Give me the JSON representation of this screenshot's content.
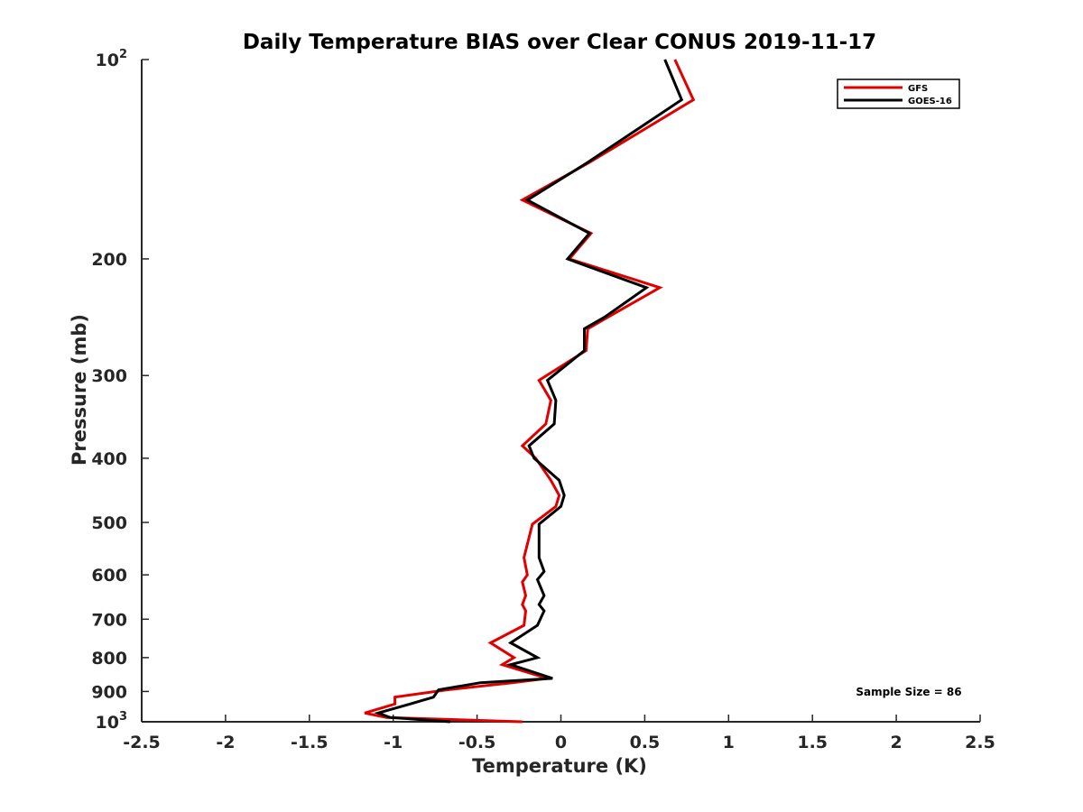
{
  "chart_data": {
    "type": "line",
    "title": "Daily Temperature BIAS over Clear CONUS 2019-11-17",
    "xlabel": "Temperature (K)",
    "ylabel": "Pressure (mb)",
    "xlim": [
      -2.5,
      2.5
    ],
    "ylim": [
      100,
      1000
    ],
    "y_scale": "log",
    "y_reversed": true,
    "grid": false,
    "legend_position": "top-right",
    "x_ticks": [
      -2.5,
      -2,
      -1.5,
      -1,
      -0.5,
      0,
      0.5,
      1,
      1.5,
      2,
      2.5
    ],
    "x_tick_labels": [
      "-2.5",
      "-2",
      "-1.5",
      "-1",
      "-0.5",
      "0",
      "0.5",
      "1",
      "1.5",
      "2",
      "2.5"
    ],
    "y_ticks": [
      100,
      200,
      300,
      400,
      500,
      600,
      700,
      800,
      900,
      1000
    ],
    "y_tick_labels": [
      {
        "base": "10",
        "exp": "2"
      },
      {
        "base": "200",
        "exp": ""
      },
      {
        "base": "300",
        "exp": ""
      },
      {
        "base": "400",
        "exp": ""
      },
      {
        "base": "500",
        "exp": ""
      },
      {
        "base": "600",
        "exp": ""
      },
      {
        "base": "700",
        "exp": ""
      },
      {
        "base": "800",
        "exp": ""
      },
      {
        "base": "900",
        "exp": ""
      },
      {
        "base": "10",
        "exp": "3"
      }
    ],
    "annotation": "Sample Size = 86",
    "series": [
      {
        "name": "GFS",
        "color": "#e00000",
        "points": [
          [
            0.68,
            100
          ],
          [
            0.79,
            115
          ],
          [
            0.17,
            143
          ],
          [
            -0.23,
            163
          ],
          [
            0.18,
            183
          ],
          [
            0.05,
            200
          ],
          [
            0.59,
            221
          ],
          [
            0.28,
            245
          ],
          [
            0.16,
            255
          ],
          [
            0.15,
            275
          ],
          [
            -0.13,
            305
          ],
          [
            -0.06,
            327
          ],
          [
            -0.09,
            355
          ],
          [
            -0.23,
            383
          ],
          [
            -0.15,
            400
          ],
          [
            -0.06,
            432
          ],
          [
            -0.01,
            455
          ],
          [
            -0.03,
            473
          ],
          [
            -0.17,
            503
          ],
          [
            -0.22,
            565
          ],
          [
            -0.2,
            600
          ],
          [
            -0.23,
            615
          ],
          [
            -0.21,
            645
          ],
          [
            -0.23,
            665
          ],
          [
            -0.21,
            680
          ],
          [
            -0.22,
            715
          ],
          [
            -0.42,
            760
          ],
          [
            -0.28,
            800
          ],
          [
            -0.35,
            820
          ],
          [
            -0.08,
            860
          ],
          [
            -0.29,
            873
          ],
          [
            -0.68,
            895
          ],
          [
            -0.99,
            918
          ],
          [
            -0.99,
            940
          ],
          [
            -1.17,
            970
          ],
          [
            -1.04,
            985
          ],
          [
            -0.23,
            1000
          ]
        ]
      },
      {
        "name": "GOES-16",
        "color": "#000000",
        "points": [
          [
            0.62,
            100
          ],
          [
            0.72,
            115
          ],
          [
            0.16,
            143
          ],
          [
            -0.2,
            163
          ],
          [
            0.17,
            183
          ],
          [
            0.04,
            200
          ],
          [
            0.51,
            221
          ],
          [
            0.26,
            245
          ],
          [
            0.14,
            255
          ],
          [
            0.14,
            275
          ],
          [
            -0.08,
            305
          ],
          [
            -0.03,
            327
          ],
          [
            -0.04,
            355
          ],
          [
            -0.19,
            383
          ],
          [
            -0.16,
            400
          ],
          [
            -0.01,
            432
          ],
          [
            0.02,
            455
          ],
          [
            0,
            473
          ],
          [
            -0.13,
            503
          ],
          [
            -0.13,
            565
          ],
          [
            -0.1,
            593
          ],
          [
            -0.14,
            610
          ],
          [
            -0.1,
            645
          ],
          [
            -0.13,
            665
          ],
          [
            -0.1,
            680
          ],
          [
            -0.14,
            715
          ],
          [
            -0.3,
            760
          ],
          [
            -0.14,
            800
          ],
          [
            -0.3,
            820
          ],
          [
            -0.05,
            860
          ],
          [
            -0.48,
            873
          ],
          [
            -0.73,
            895
          ],
          [
            -0.76,
            918
          ],
          [
            -0.9,
            940
          ],
          [
            -1.09,
            970
          ],
          [
            -1.02,
            985
          ],
          [
            -0.66,
            1000
          ]
        ]
      }
    ]
  }
}
